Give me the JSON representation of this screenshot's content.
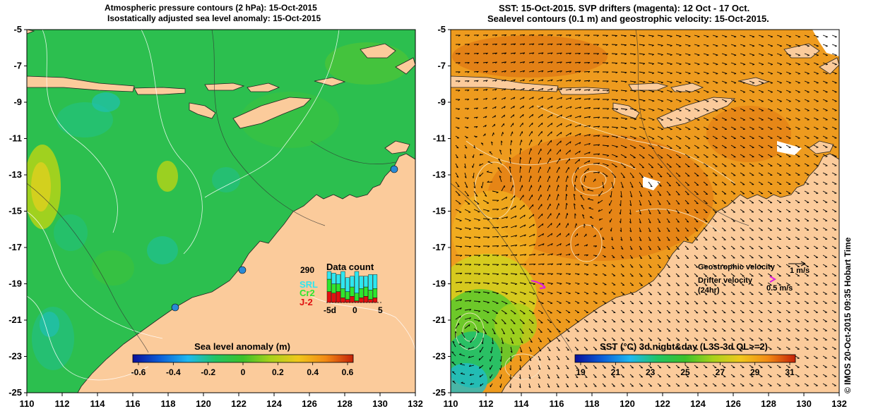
{
  "left_panel": {
    "title_line1": "Atmospheric pressure contours (2 hPa): 15-Oct-2015",
    "title_line2": "Isostatically adjusted sea level anomaly: 15-Oct-2015",
    "colorbar_title": "Sea level anomaly (m)",
    "colorbar_ticks": [
      "-0.6",
      "-0.4",
      "-0.2",
      "0",
      "0.2",
      "0.4",
      "0.6"
    ],
    "colorbar_colors": [
      "#0a0f9b",
      "#0b5fd8",
      "#1eb8f0",
      "#21c463",
      "#3cc12a",
      "#a8d21b",
      "#f0c81c",
      "#f28a14",
      "#c42208"
    ],
    "data_count": {
      "title": "Data count",
      "max_label": "290",
      "satellites": [
        {
          "name": "SRL",
          "color": "#2ee6f0"
        },
        {
          "name": "Cr2",
          "color": "#2ee62e"
        },
        {
          "name": "J-2",
          "color": "#e01010"
        }
      ],
      "x_ticks": [
        "-5d",
        "0",
        "5"
      ],
      "bars": [
        {
          "srl": 0.25,
          "cr2": 0.4,
          "j2": 0.35
        },
        {
          "srl": 0.35,
          "cr2": 0.3,
          "j2": 0.3
        },
        {
          "srl": 0.3,
          "cr2": 0.25,
          "j2": 0.35
        },
        {
          "srl": 0.55,
          "cr2": 0.3,
          "j2": 0.15
        },
        {
          "srl": 0.45,
          "cr2": 0.25,
          "j2": 0.1
        },
        {
          "srl": 0.35,
          "cr2": 0.3,
          "j2": 0.2
        },
        {
          "srl": 0.7,
          "cr2": 0.25,
          "j2": 0.05
        },
        {
          "srl": 0.4,
          "cr2": 0.3,
          "j2": 0.15
        },
        {
          "srl": 0.35,
          "cr2": 0.3,
          "j2": 0.2
        },
        {
          "srl": 0.5,
          "cr2": 0.3,
          "j2": 0.1
        },
        {
          "srl": 0.45,
          "cr2": 0.3,
          "j2": 0.15
        }
      ]
    }
  },
  "right_panel": {
    "title_line1": "SST: 15-Oct-2015. SVP drifters (magenta): 12 Oct - 17 Oct.",
    "title_line2": "Sealevel contours (0.1 m) and geostrophic velocity: 15-Oct-2015.",
    "colorbar_title": "SST (°C) 3d night&day (L3S-3d QL>=2)",
    "colorbar_ticks": [
      "19",
      "21",
      "23",
      "25",
      "27",
      "29",
      "31"
    ],
    "colorbar_colors": [
      "#0a0f9b",
      "#0b5fd8",
      "#1eb8f0",
      "#21c463",
      "#3cc12a",
      "#a8d21b",
      "#f0c81c",
      "#f28a14",
      "#c42208"
    ],
    "legend": {
      "geostrophic_label": "Geostrophic velocity",
      "geostrophic_scale": "1 m/s",
      "drifter_label_line1": "Drifter velocity",
      "drifter_label_line2": "(24hr)",
      "drifter_scale": "0.5 m/s"
    }
  },
  "axes": {
    "x_ticks": [
      "110",
      "112",
      "114",
      "116",
      "118",
      "120",
      "122",
      "124",
      "126",
      "128",
      "130",
      "132"
    ],
    "y_ticks": [
      "-5",
      "-7",
      "-9",
      "-11",
      "-13",
      "-15",
      "-17",
      "-19",
      "-21",
      "-23",
      "-25"
    ]
  },
  "copyright": "© IMOS 20-Oct-2015 09:35 Hobart Time",
  "colors": {
    "land": "#fbcb9b",
    "ocean_left": "#29c24d",
    "ocean_right": "#f0a11e",
    "drifter": "#e020e0",
    "tide_gauge": "#2a8ad6"
  }
}
